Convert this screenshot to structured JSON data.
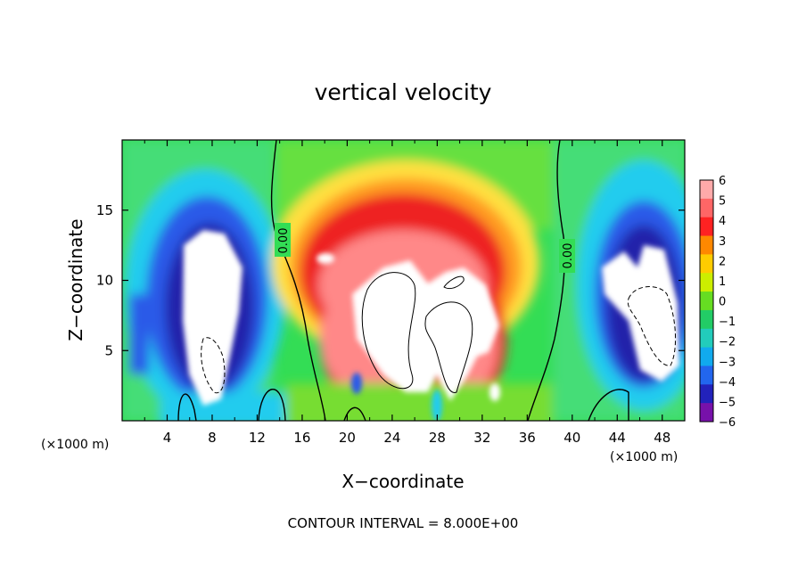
{
  "chart_data": {
    "type": "heatmap",
    "title": "vertical velocity",
    "xlabel": "X−coordinate",
    "ylabel": "Z−coordinate",
    "x_unit": "(×1000 m)",
    "y_unit": "(×1000 m)",
    "xlim": [
      0,
      50
    ],
    "ylim": [
      0,
      20
    ],
    "x_ticks": [
      "4",
      "8",
      "12",
      "16",
      "20",
      "24",
      "28",
      "32",
      "36",
      "40",
      "44",
      "48"
    ],
    "y_ticks": [
      "5",
      "10",
      "15"
    ],
    "colorbar": {
      "range": [
        -6,
        6
      ],
      "ticks": [
        "6",
        "5",
        "4",
        "3",
        "2",
        "1",
        "0",
        "−1",
        "−2",
        "−3",
        "−4",
        "−5",
        "−6"
      ],
      "saturation_color": "#ffffff"
    },
    "contour_labels": [
      "0.00",
      "0.00"
    ],
    "note": "CONTOUR INTERVAL = 8.000E+00",
    "features": [
      {
        "kind": "updraft",
        "x": 26,
        "z": 8.5,
        "peak": 6
      },
      {
        "kind": "downdraft",
        "x": 8.5,
        "z": 9,
        "peak": -6
      },
      {
        "kind": "downdraft",
        "x": 47,
        "z": 9,
        "peak": -6
      }
    ],
    "grid": false,
    "legend": "colorbar-right"
  }
}
